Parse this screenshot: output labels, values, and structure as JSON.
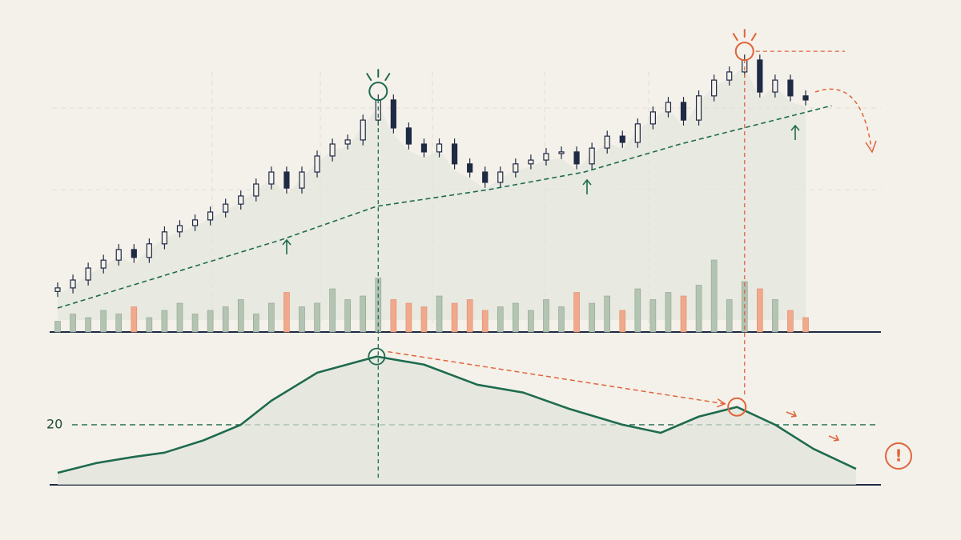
{
  "chart_data": [
    {
      "type": "candlestick",
      "x": [
        0,
        1,
        2,
        3,
        4,
        5,
        6,
        7,
        8,
        9,
        10,
        11,
        12,
        13,
        14,
        15,
        16,
        17,
        18,
        19,
        20,
        21,
        22,
        23,
        24,
        25,
        26,
        27,
        28,
        29,
        30,
        31,
        32,
        33,
        34,
        35,
        36,
        37,
        38,
        39,
        40,
        41,
        42,
        43,
        44,
        45,
        46,
        47,
        48,
        49
      ],
      "open": [
        10.5,
        11.8,
        14.7,
        19.1,
        22,
        25.9,
        23,
        28,
        32.4,
        34.7,
        36.8,
        39.7,
        42.6,
        45.6,
        50,
        54.4,
        48.5,
        54.4,
        60.3,
        64.7,
        66.2,
        73.5,
        80.9,
        70.6,
        64.7,
        61.8,
        64.7,
        57.4,
        54.4,
        50.6,
        54.4,
        57.4,
        58.8,
        61.2,
        61.8,
        57.4,
        63.2,
        67.6,
        65.3,
        72.1,
        76.5,
        80,
        73.5,
        82.4,
        88.2,
        91.2,
        95.6,
        83.8,
        88.2,
        82.4
      ],
      "high": [
        13.8,
        16.7,
        21.1,
        24,
        27.9,
        27.9,
        30,
        34.4,
        36.7,
        38.8,
        41.7,
        44.6,
        47.6,
        52,
        56.4,
        56.4,
        56.4,
        62.3,
        66.7,
        68.2,
        75.5,
        82.9,
        82.9,
        72.6,
        66.7,
        66.7,
        66.7,
        59.4,
        56.4,
        56.4,
        59.4,
        60.8,
        63.2,
        63.8,
        63.8,
        65.2,
        69.6,
        69.6,
        74.1,
        78.5,
        82,
        82,
        84.4,
        90.2,
        93.2,
        97.6,
        97.6,
        90.2,
        90.2,
        84.4
      ],
      "low": [
        8.5,
        9.8,
        12.7,
        17.1,
        20,
        21,
        21,
        26,
        30.4,
        32.7,
        34.8,
        37.7,
        40.6,
        43.6,
        48,
        46.5,
        46.5,
        52.4,
        58.3,
        62.7,
        64.2,
        71.5,
        68.6,
        62.7,
        59.8,
        59.8,
        55.4,
        52.4,
        48.6,
        48.6,
        52.4,
        55.4,
        56.8,
        59.2,
        55.4,
        55.4,
        61.2,
        63.3,
        63.3,
        70.1,
        74.5,
        71.5,
        71.5,
        80.4,
        86.2,
        89.2,
        81.8,
        81.8,
        80.4,
        78.9
      ],
      "close": [
        11.8,
        14.7,
        19.1,
        22,
        25.9,
        23,
        28,
        32.4,
        34.7,
        36.8,
        39.7,
        42.6,
        45.6,
        50,
        54.4,
        48.5,
        54.4,
        60.3,
        64.7,
        66.2,
        73.5,
        80.9,
        70.6,
        64.7,
        61.8,
        64.7,
        57.4,
        54.4,
        50.6,
        54.4,
        57.4,
        58.8,
        61.2,
        61.8,
        57.4,
        63.2,
        67.6,
        65.3,
        72.1,
        76.5,
        80,
        73.5,
        82.4,
        88.2,
        91.2,
        95.6,
        83.8,
        88.2,
        82.4,
        80.9
      ],
      "color": "#1f2a44",
      "moving_average": {
        "x": [
          0,
          14.6,
          20.9,
          28.2,
          34.5,
          40.8,
          50.7
        ],
        "values": [
          4.4,
          29.4,
          41.8,
          47.9,
          54.4,
          64.7,
          78.8
        ],
        "color": "#1e6b4f"
      },
      "xlim": [
        0,
        49
      ],
      "ylim": [
        0,
        100
      ]
    },
    {
      "type": "bar",
      "values": [
        15,
        25,
        20,
        30,
        25,
        35,
        20,
        30,
        40,
        25,
        30,
        35,
        45,
        25,
        40,
        55,
        35,
        40,
        60,
        45,
        50,
        75,
        45,
        40,
        35,
        50,
        40,
        45,
        30,
        35,
        40,
        30,
        45,
        35,
        55,
        40,
        50,
        30,
        60,
        45,
        55,
        50,
        65,
        100,
        45,
        70,
        60,
        45,
        30,
        20
      ],
      "up_color": "#b3c4b3",
      "down_color": "#f0a98c",
      "ylim": [
        0,
        100
      ]
    },
    {
      "type": "line",
      "x": [
        0,
        2.5,
        5,
        7,
        9.5,
        12,
        14,
        17,
        20.9,
        24,
        27.5,
        30.5,
        33.5,
        37,
        39.5,
        42,
        44.5,
        47,
        49.5,
        52.3
      ],
      "values": [
        4,
        7.2,
        9.3,
        10.7,
        14.7,
        20,
        28,
        37.3,
        42.7,
        40,
        33.3,
        30.7,
        25.3,
        20,
        17.3,
        22.7,
        25.9,
        20,
        12,
        5.3
      ],
      "color": "#1e6b4f",
      "ylim": [
        0,
        45
      ],
      "yticks": [
        20
      ],
      "annotation": "!"
    }
  ]
}
